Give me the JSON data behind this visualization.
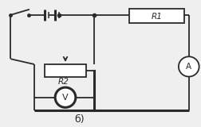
{
  "bg_color": "#efefef",
  "line_color": "#2a2a2a",
  "label_color": "#2a2a2a",
  "fig_bg": "#efefef",
  "label_R1": "R1",
  "label_R2": "R2",
  "label_A": "A",
  "label_V": "V",
  "label_b": "б)",
  "lw": 1.3,
  "lw_thick": 2.2
}
